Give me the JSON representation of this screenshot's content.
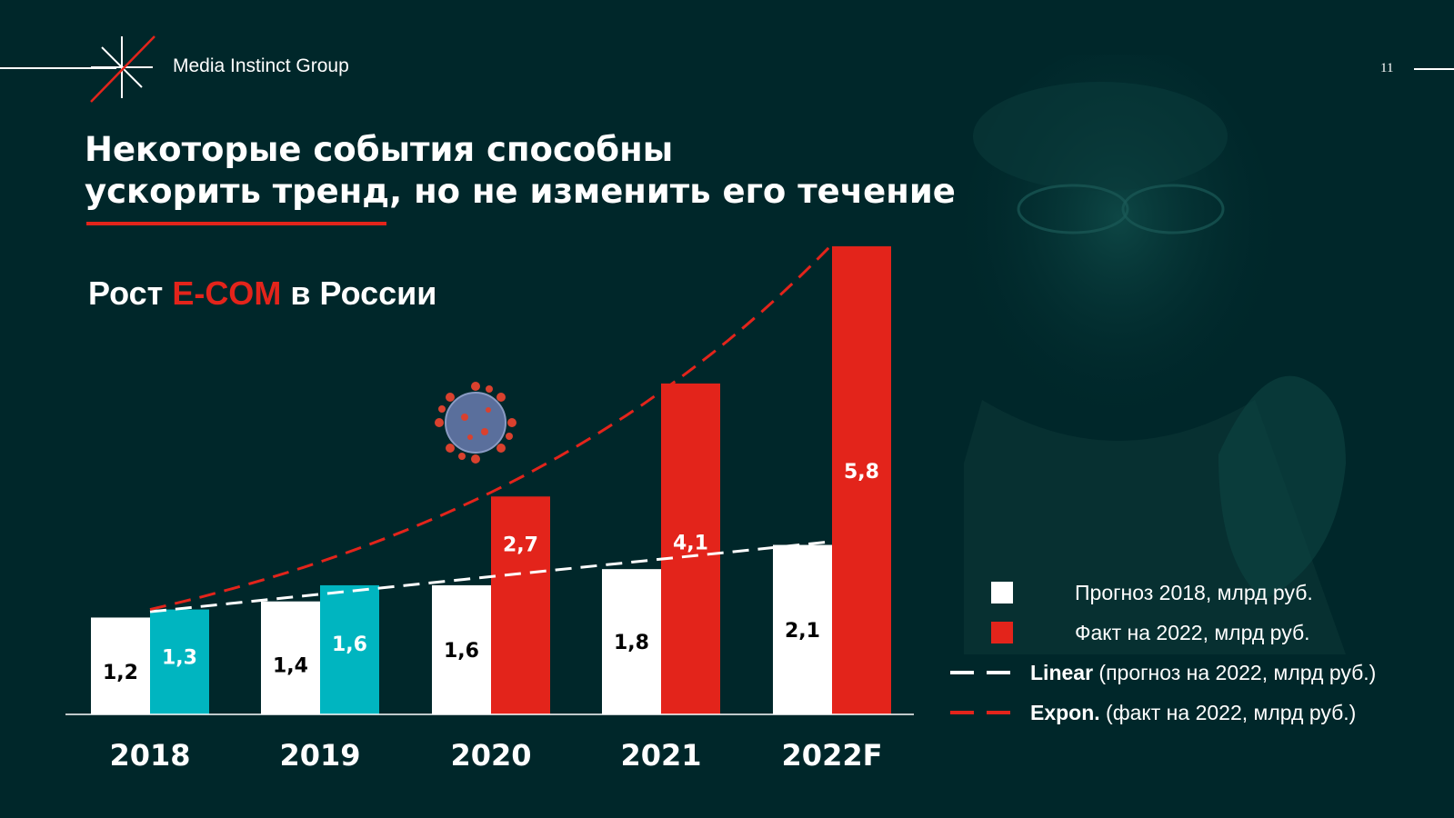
{
  "header": {
    "brand": "Media Instinct Group",
    "page_number": "11"
  },
  "headline": {
    "line1": "Некоторые события способны",
    "line2": "ускорить тренд, но не изменить его течение"
  },
  "subtitle": {
    "prefix": "Рост",
    "accent": "E-COM",
    "suffix": "в России"
  },
  "colors": {
    "background": "#00272a",
    "red": "#e3241b",
    "teal": "#00b5c0",
    "white": "#ffffff"
  },
  "chart_data": {
    "type": "bar",
    "categories": [
      "2018",
      "2019",
      "2020",
      "2021",
      "2022F"
    ],
    "series": [
      {
        "name": "Прогноз 2018, млрд руб.",
        "values": [
          1.2,
          1.4,
          1.6,
          1.8,
          2.1
        ],
        "labels": [
          "1,2",
          "1,4",
          "1,6",
          "1,8",
          "2,1"
        ],
        "colors": [
          "#ffffff",
          "#ffffff",
          "#ffffff",
          "#ffffff",
          "#ffffff"
        ],
        "label_colors": [
          "#000000",
          "#000000",
          "#000000",
          "#000000",
          "#000000"
        ]
      },
      {
        "name": "Факт на 2022, млрд руб.",
        "values": [
          1.3,
          1.6,
          2.7,
          4.1,
          5.8
        ],
        "labels": [
          "1,3",
          "1,6",
          "2,7",
          "4,1",
          "5,8"
        ],
        "colors": [
          "#00b5c0",
          "#00b5c0",
          "#e3241b",
          "#e3241b",
          "#e3241b"
        ],
        "label_colors": [
          "#ffffff",
          "#ffffff",
          "#ffffff",
          "#ffffff",
          "#ffffff"
        ]
      }
    ],
    "trendlines": [
      {
        "name": "Linear",
        "type": "linear",
        "based_on": "Прогноз 2018, млрд руб.",
        "color": "#ffffff",
        "dashed": true
      },
      {
        "name": "Expon.",
        "type": "exponential",
        "based_on": "Факт на 2022, млрд руб.",
        "color": "#e3241b",
        "dashed": true
      }
    ],
    "ylim": [
      0,
      5.8
    ],
    "grid": false,
    "legend_position": "bottom-right"
  },
  "legend": [
    {
      "kind": "swatch",
      "color": "#ffffff",
      "bold": "",
      "text": "Прогноз 2018, млрд руб."
    },
    {
      "kind": "swatch",
      "color": "#e3241b",
      "bold": "",
      "text": "Факт на 2022, млрд руб."
    },
    {
      "kind": "dash",
      "color": "#ffffff",
      "bold": "Linear",
      "text": " (прогноз на 2022, млрд руб.)"
    },
    {
      "kind": "dash",
      "color": "#e3241b",
      "bold": "Expon.",
      "text": " (факт на 2022, млрд руб.)"
    }
  ]
}
